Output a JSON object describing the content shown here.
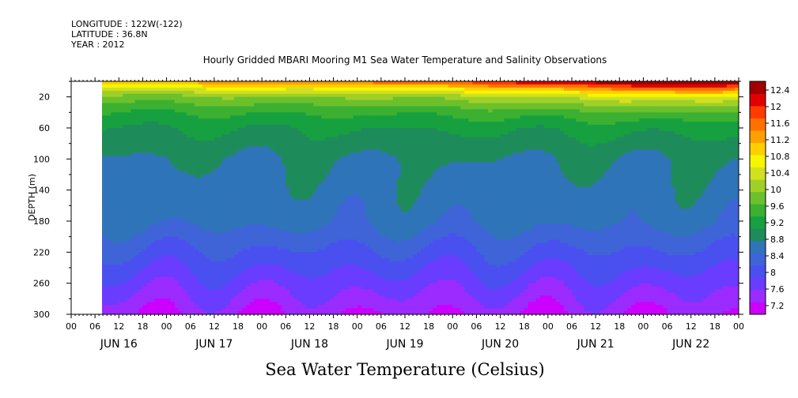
{
  "header": {
    "longitude": "LONGITUDE : 122W(-122)",
    "latitude": "LATITUDE : 36.8N",
    "year": "YEAR : 2012"
  },
  "colors": {
    "ramp": [
      "#cc00ff",
      "#9b2bff",
      "#6a3cff",
      "#4a50f0",
      "#3e64d8",
      "#2f74b8",
      "#1e8c5a",
      "#16a040",
      "#3cb030",
      "#6cc02c",
      "#a0d028",
      "#d2e020",
      "#f6f600",
      "#ffd000",
      "#ffa000",
      "#ff7000",
      "#ff3c00",
      "#e00000",
      "#a00000"
    ]
  },
  "chart_data": {
    "type": "heatmap",
    "title": "Hourly Gridded MBARI Mooring M1 Sea Water Temperature and Salinity Observations",
    "xlabel": "Sea Water Temperature (Celsius)",
    "ylabel": "DEPTH (m)",
    "ylim": [
      300,
      0
    ],
    "y_ticks": [
      20,
      60,
      100,
      140,
      180,
      220,
      260,
      300
    ],
    "x_hour_ticks": [
      "00",
      "06",
      "12",
      "18",
      "00",
      "06",
      "12",
      "18",
      "00",
      "06",
      "12",
      "18",
      "00",
      "06",
      "12",
      "18",
      "00",
      "06",
      "12",
      "18",
      "00",
      "06",
      "12",
      "18",
      "00",
      "06",
      "12",
      "18",
      "00"
    ],
    "x_day_labels": [
      "JUN 16",
      "JUN 17",
      "JUN 18",
      "JUN 19",
      "JUN 20",
      "JUN 21",
      "JUN 22"
    ],
    "x_range_hours": [
      0,
      168
    ],
    "data_start_hour": 7,
    "colorbar_labels": [
      "12.4",
      "12",
      "11.6",
      "11.2",
      "10.8",
      "10.4",
      "10",
      "9.6",
      "9.2",
      "8.8",
      "8.4",
      "8",
      "7.6",
      "7.2"
    ],
    "colorbar_levels": [
      7.2,
      12.6
    ],
    "depth_profile": [
      {
        "depth": 0,
        "temp": 11.4
      },
      {
        "depth": 10,
        "temp": 10.6
      },
      {
        "depth": 20,
        "temp": 10.0
      },
      {
        "depth": 40,
        "temp": 9.5
      },
      {
        "depth": 60,
        "temp": 9.2
      },
      {
        "depth": 100,
        "temp": 8.9
      },
      {
        "depth": 140,
        "temp": 8.8
      },
      {
        "depth": 180,
        "temp": 8.7
      },
      {
        "depth": 200,
        "temp": 8.5
      },
      {
        "depth": 230,
        "temp": 8.2
      },
      {
        "depth": 260,
        "temp": 7.9
      },
      {
        "depth": 300,
        "temp": 7.5
      }
    ],
    "surface_temp_by_day": [
      {
        "hour": 7,
        "temp": 10.6
      },
      {
        "hour": 24,
        "temp": 10.8
      },
      {
        "hour": 48,
        "temp": 11.0
      },
      {
        "hour": 72,
        "temp": 11.0
      },
      {
        "hour": 96,
        "temp": 11.3
      },
      {
        "hour": 120,
        "temp": 11.8
      },
      {
        "hour": 144,
        "temp": 12.2
      },
      {
        "hour": 160,
        "temp": 12.6
      },
      {
        "hour": 168,
        "temp": 12.0
      }
    ]
  }
}
